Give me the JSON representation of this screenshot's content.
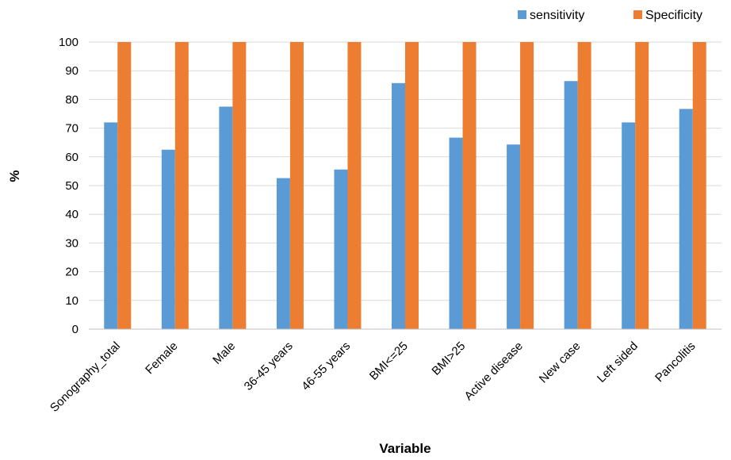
{
  "chart_data": {
    "type": "bar",
    "title": "",
    "xlabel": "Variable",
    "ylabel": "%",
    "ylim": [
      0,
      100
    ],
    "yticks": [
      0,
      10,
      20,
      30,
      40,
      50,
      60,
      70,
      80,
      90,
      100
    ],
    "grid": true,
    "legend_position": "top-right",
    "categories": [
      "Sonography_total",
      "Female",
      "Male",
      "36-45 years",
      "46-55 years",
      "BMI<=25",
      "BMI>25",
      "Active disease",
      "New case",
      "Left sided",
      "Pancolitis"
    ],
    "series": [
      {
        "name": "sensitivity",
        "color": "#5B9BD5",
        "values": [
          72,
          62.5,
          77.5,
          52.6,
          55.6,
          85.7,
          66.7,
          64.3,
          86.4,
          72,
          76.7
        ]
      },
      {
        "name": "Specificity",
        "color": "#ED7D31",
        "values": [
          100,
          100,
          100,
          100,
          100,
          100,
          100,
          100,
          100,
          100,
          100
        ]
      }
    ]
  }
}
